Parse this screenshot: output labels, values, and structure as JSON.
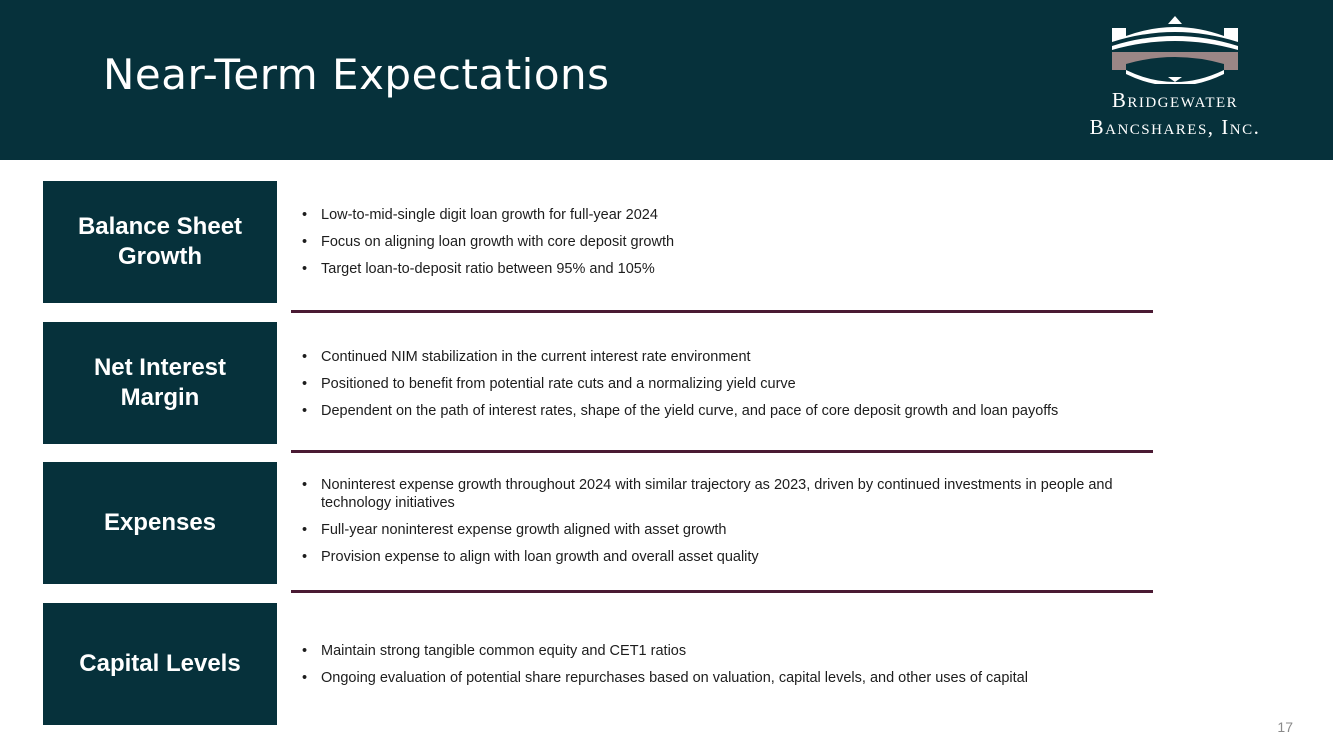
{
  "header": {
    "title": "Near-Term Expectations",
    "logo_line1": "Bridgewater",
    "logo_line2": "Bancshares, Inc.",
    "background_color": "#06313b"
  },
  "sections": [
    {
      "label": "Balance Sheet Growth",
      "bullets": [
        "Low-to-mid-single digit loan growth for full-year 2024",
        "Focus on aligning loan growth with core deposit growth",
        "Target loan-to-deposit ratio between 95% and 105%"
      ]
    },
    {
      "label": "Net Interest Margin",
      "bullets": [
        "Continued NIM stabilization in the current interest rate environment",
        "Positioned to benefit from potential rate cuts and a normalizing yield curve",
        "Dependent on the path of interest rates, shape of the yield curve, and pace of core deposit growth and loan payoffs"
      ]
    },
    {
      "label": "Expenses",
      "bullets": [
        "Noninterest expense growth throughout 2024 with similar trajectory as 2023, driven by continued investments in people and technology initiatives",
        "Full-year noninterest expense growth aligned with asset growth",
        "Provision expense to align with loan growth and overall asset quality"
      ]
    },
    {
      "label": "Capital Levels",
      "bullets": [
        "Maintain strong tangible common equity and CET1 ratios",
        "Ongoing evaluation of potential share repurchases based on valuation, capital levels, and other uses of capital"
      ]
    }
  ],
  "footer": {
    "page_number": "17"
  },
  "colors": {
    "box": "#06313b",
    "divider": "#4a1a33"
  }
}
